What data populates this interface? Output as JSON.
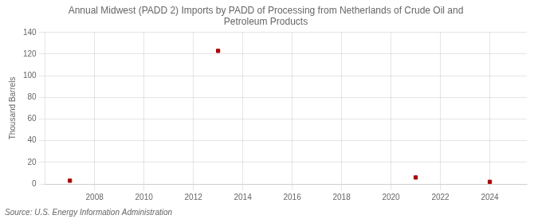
{
  "chart_data": {
    "type": "scatter",
    "title": "Annual Midwest (PADD 2) Imports by PADD of Processing from Netherlands of Crude Oil and\nPetroleum Products",
    "ylabel": "Thousand Barrels",
    "annotations": [
      "Source: U.S. Energy Information Administration"
    ],
    "x": [
      2007,
      2013,
      2021,
      2024
    ],
    "values": [
      3,
      123,
      6,
      2
    ],
    "color": "#aa0000",
    "marker": "square",
    "xlim": [
      2006,
      2025.5
    ],
    "xticks": [
      2008,
      2010,
      2012,
      2014,
      2016,
      2018,
      2020,
      2022,
      2024
    ],
    "ylim": [
      0,
      140
    ],
    "yticks": [
      0,
      20,
      40,
      60,
      80,
      100,
      120,
      140
    ],
    "grid": true
  }
}
